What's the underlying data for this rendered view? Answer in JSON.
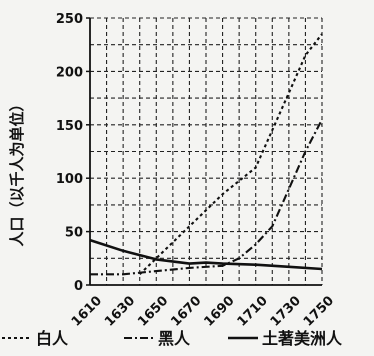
{
  "chart_data": {
    "type": "line",
    "ylabel": "人口（以千人为单位）",
    "xlabel": "",
    "x": [
      1610,
      1630,
      1650,
      1670,
      1690,
      1710,
      1730,
      1750
    ],
    "xlim": [
      1610,
      1750
    ],
    "ylim": [
      0,
      250
    ],
    "yticks": [
      0,
      50,
      100,
      150,
      200,
      250
    ],
    "grid": true,
    "legend_position": "bottom",
    "series": [
      {
        "name": "白人",
        "style": "dotted",
        "color": "#111111",
        "points": [
          [
            1640,
            10
          ],
          [
            1650,
            25
          ],
          [
            1670,
            55
          ],
          [
            1690,
            85
          ],
          [
            1710,
            110
          ],
          [
            1720,
            145
          ],
          [
            1730,
            180
          ],
          [
            1740,
            215
          ],
          [
            1750,
            235
          ]
        ]
      },
      {
        "name": "黑人",
        "style": "dash-dot",
        "color": "#111111",
        "points": [
          [
            1610,
            10
          ],
          [
            1630,
            10
          ],
          [
            1650,
            13
          ],
          [
            1670,
            16
          ],
          [
            1690,
            18
          ],
          [
            1700,
            25
          ],
          [
            1710,
            38
          ],
          [
            1720,
            55
          ],
          [
            1730,
            90
          ],
          [
            1740,
            125
          ],
          [
            1750,
            155
          ]
        ]
      },
      {
        "name": "土著美洲人",
        "style": "solid",
        "color": "#111111",
        "points": [
          [
            1610,
            42
          ],
          [
            1630,
            32
          ],
          [
            1650,
            24
          ],
          [
            1670,
            20
          ],
          [
            1680,
            21
          ],
          [
            1690,
            20
          ],
          [
            1710,
            19
          ],
          [
            1730,
            17
          ],
          [
            1750,
            15
          ]
        ]
      }
    ]
  }
}
